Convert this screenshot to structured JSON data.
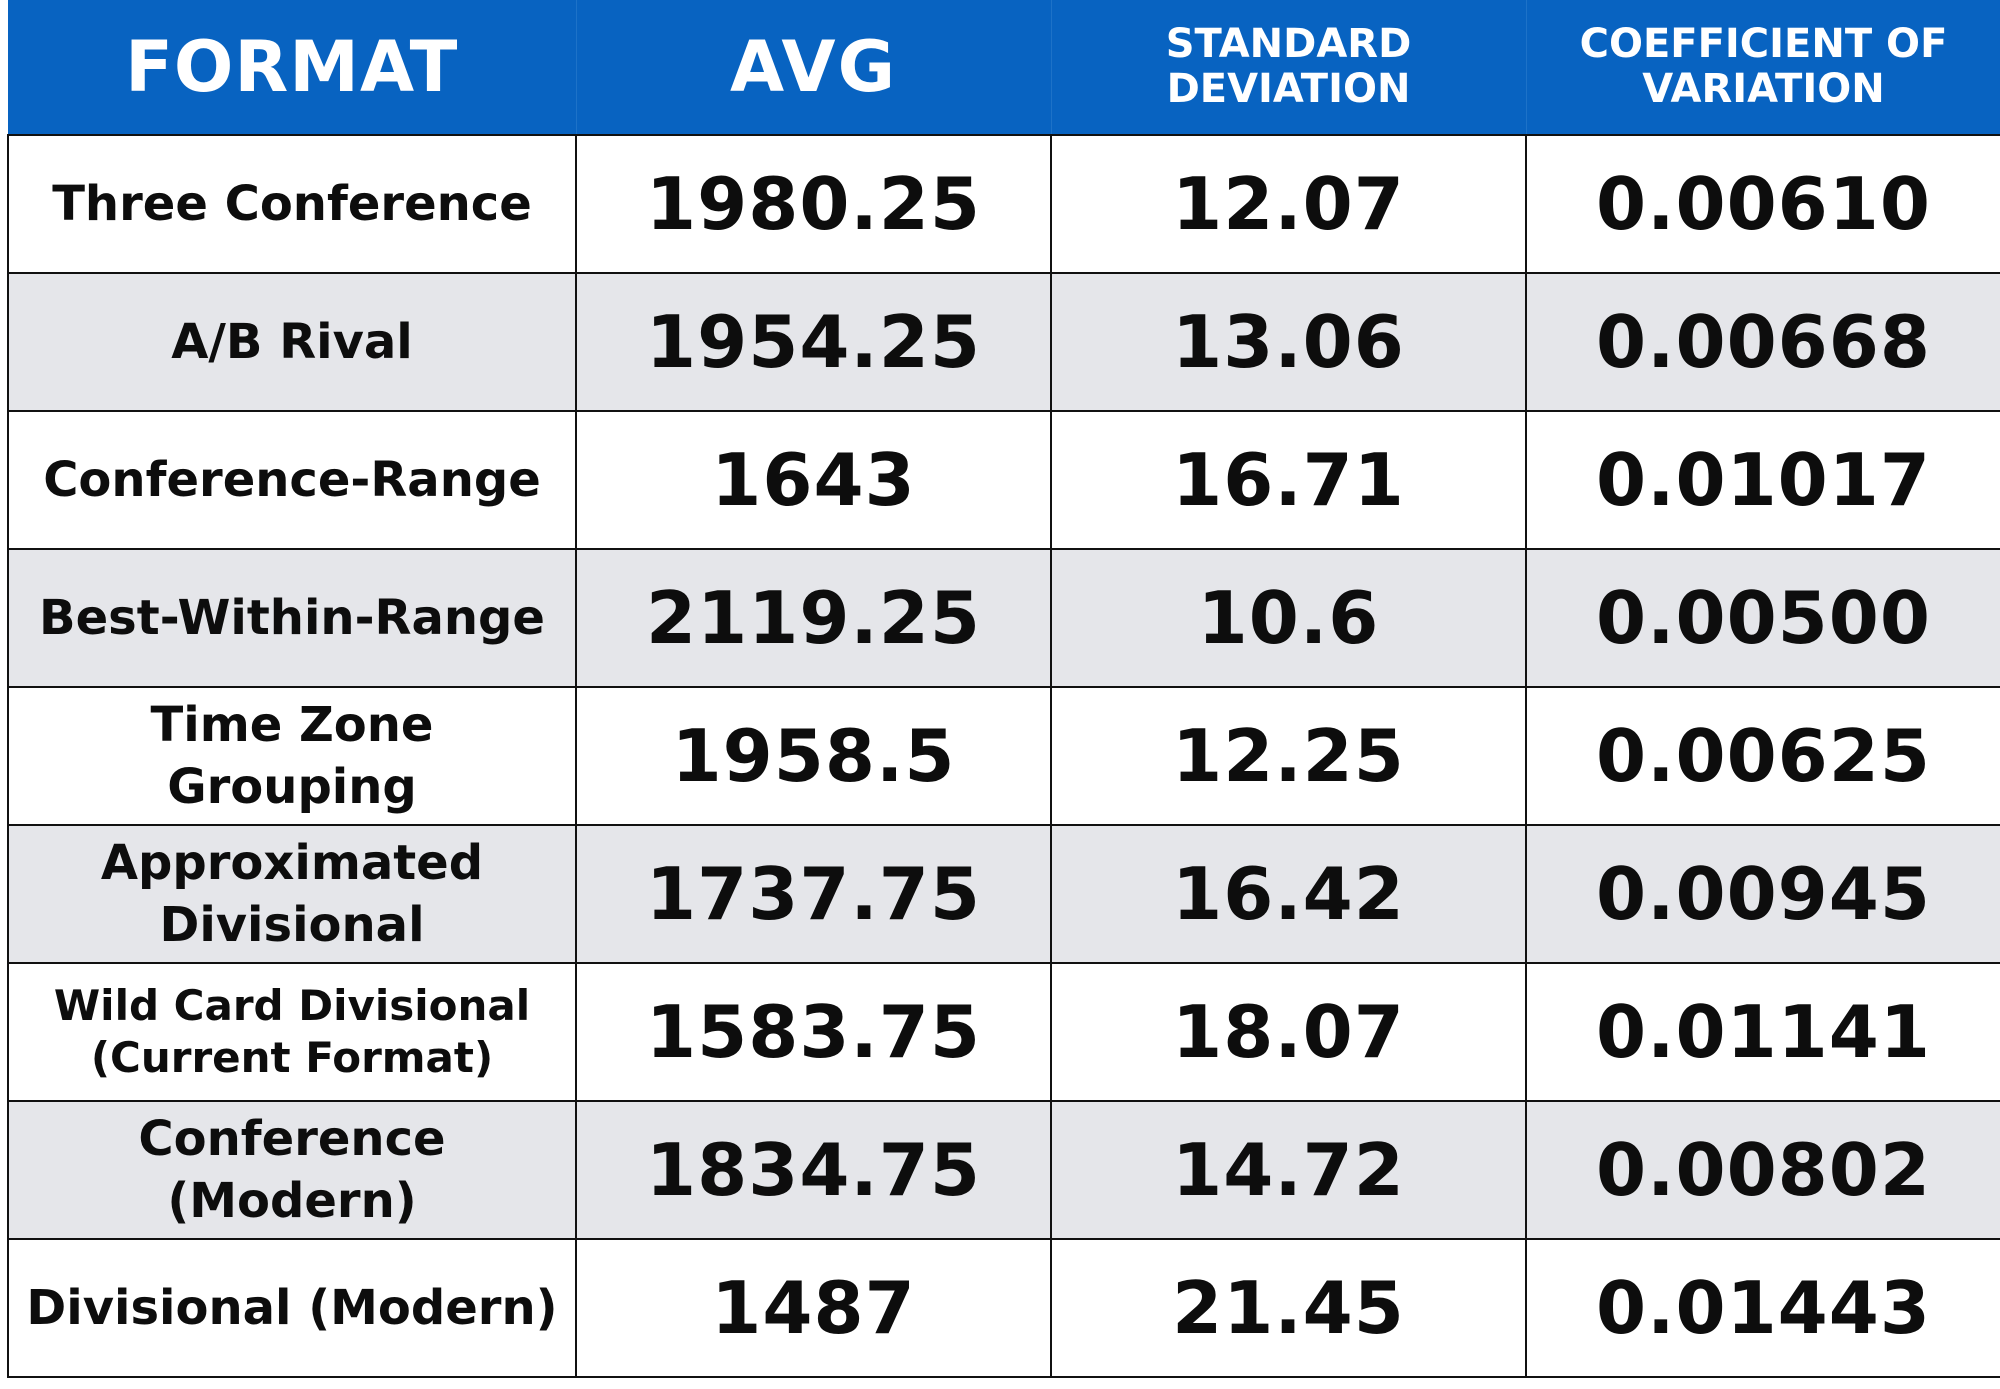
{
  "chart_data": {
    "type": "table",
    "columns": [
      "FORMAT",
      "AVG",
      "STANDARD DEVIATION",
      "COEFFICIENT OF VARIATION"
    ],
    "rows": [
      {
        "format": "Three Conference",
        "avg": "1980.25",
        "std": "12.07",
        "cov": "0.00610"
      },
      {
        "format": "A/B Rival",
        "avg": "1954.25",
        "std": "13.06",
        "cov": "0.00668"
      },
      {
        "format": "Conference-Range",
        "avg": "1643",
        "std": "16.71",
        "cov": "0.01017"
      },
      {
        "format": "Best-Within-Range",
        "avg": "2119.25",
        "std": "10.6",
        "cov": "0.00500"
      },
      {
        "format": "Time Zone Grouping",
        "avg": "1958.5",
        "std": "12.25",
        "cov": "0.00625"
      },
      {
        "format": "Approximated Divisional",
        "avg": "1737.75",
        "std": "16.42",
        "cov": "0.00945"
      },
      {
        "format": "Wild Card Divisional (Current Format)",
        "avg": "1583.75",
        "std": "18.07",
        "cov": "0.01141"
      },
      {
        "format": "Conference (Modern)",
        "avg": "1834.75",
        "std": "14.72",
        "cov": "0.00802"
      },
      {
        "format": "Divisional (Modern)",
        "avg": "1487",
        "std": "21.45",
        "cov": "0.01443"
      }
    ]
  },
  "colors": {
    "header_bg": "#0863c1",
    "header_text": "#ffffff",
    "row_alt_bg": "#e5e6ea",
    "row_bg": "#ffffff",
    "border": "#111111"
  }
}
